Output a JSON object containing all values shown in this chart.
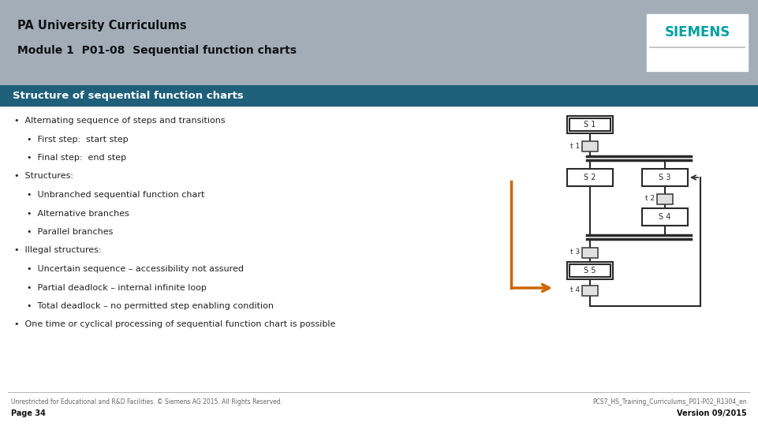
{
  "title_line1": "PA University Curriculums",
  "title_line2": "Module 1  P01-08  Sequential function charts",
  "section_title": "Structure of sequential function charts",
  "header_bg": "#a2adb8",
  "section_bg": "#1e5f7a",
  "section_text_color": "#ffffff",
  "page_bg": "#ffffff",
  "body_text_color": "#222222",
  "siemens_color": "#00a0a0",
  "bullet_items": [
    {
      "text": "Alternating sequence of steps and transitions",
      "level": 0
    },
    {
      "text": "First step:  start step",
      "level": 1
    },
    {
      "text": "Final step:  end step",
      "level": 1
    },
    {
      "text": "Structures:",
      "level": 0
    },
    {
      "text": "Unbranched sequential function chart",
      "level": 1
    },
    {
      "text": "Alternative branches",
      "level": 1
    },
    {
      "text": "Parallel branches",
      "level": 1
    },
    {
      "text": "Illegal structures:",
      "level": 0
    },
    {
      "text": "Uncertain sequence – accessibility not assured",
      "level": 1
    },
    {
      "text": "Partial deadlock – internal infinite loop",
      "level": 1
    },
    {
      "text": "Total deadlock – no permitted step enabling condition",
      "level": 1
    },
    {
      "text": "One time or cyclical processing of sequential function chart is possible",
      "level": 0
    }
  ],
  "footer_left": "Unrestricted for Educational and R&D Facilities. © Siemens AG 2015. All Rights Reserved.",
  "footer_page": "Page 34",
  "footer_right": "PCS7_HS_Training_Curriculums_P01-P02_R1304_en",
  "footer_version": "Version 09/2015"
}
